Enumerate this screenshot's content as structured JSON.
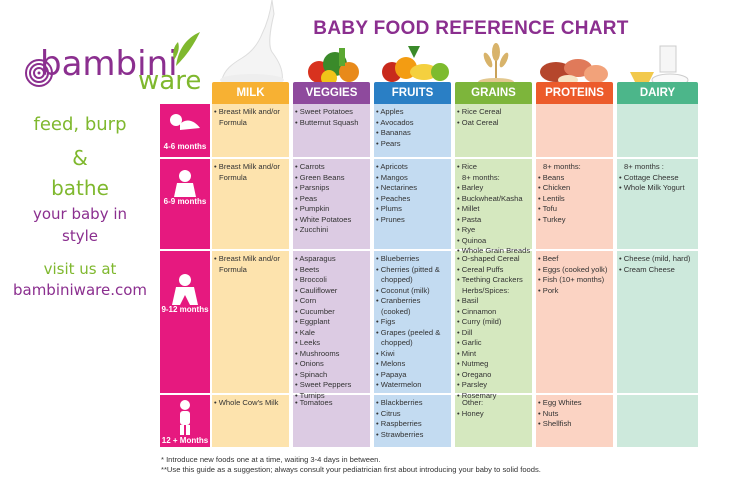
{
  "brand": {
    "logo_part1": "bambini",
    "logo_part2": "ware",
    "tagline1": "feed, burp",
    "tagline_amp": "&",
    "tagline2": "bathe",
    "tagline3": "your baby in",
    "tagline4": "style",
    "visit": "visit us at",
    "website": "bambiniware.com"
  },
  "title": "BABY FOOD REFERENCE CHART",
  "colors": {
    "milk": "#f7b133",
    "veggies": "#8e4a9d",
    "fruits": "#2a7fc5",
    "grains": "#7db53b",
    "proteins": "#ec5b2b",
    "dairy": "#4cb68a",
    "age": "#e6197f"
  },
  "columns": [
    {
      "key": "milk",
      "label": "MILK"
    },
    {
      "key": "veggies",
      "label": "VEGGIES"
    },
    {
      "key": "fruits",
      "label": "FRUITS"
    },
    {
      "key": "grains",
      "label": "GRAINS"
    },
    {
      "key": "proteins",
      "label": "PROTEINS"
    },
    {
      "key": "dairy",
      "label": "DAIRY"
    }
  ],
  "rows": [
    {
      "age": "4-6 months",
      "milk": [
        "• Breast Milk and/or",
        "Formula"
      ],
      "veggies": [
        "• Sweet Potatoes",
        "• Butternut Squash"
      ],
      "fruits": [
        "• Apples",
        "• Avocados",
        "• Bananas",
        "• Pears"
      ],
      "grains": [
        "• Rice Cereal",
        "• Oat Cereal"
      ],
      "proteins": [],
      "dairy": []
    },
    {
      "age": "6-9 months",
      "milk": [
        "• Breast Milk and/or",
        "Formula"
      ],
      "veggies": [
        "• Carrots",
        "• Green Beans",
        "• Parsnips",
        "• Peas",
        "• Pumpkin",
        "• White Potatoes",
        "• Zucchini"
      ],
      "fruits": [
        "• Apricots",
        "• Mangos",
        "• Nectarines",
        "• Peaches",
        "• Plums",
        "• Prunes"
      ],
      "grains": [
        "• Rice",
        "8+ months:",
        "• Barley",
        "• Buckwheat/Kasha",
        "• Millet",
        "• Pasta",
        "• Rye",
        "• Quinoa",
        "• Whole Grain Breads"
      ],
      "proteins": [
        "8+ months:",
        "• Beans",
        "• Chicken",
        "• Lentils",
        "• Tofu",
        "• Turkey"
      ],
      "dairy": [
        "8+ months :",
        "• Cottage Cheese",
        "• Whole Milk Yogurt"
      ]
    },
    {
      "age": "9-12 months",
      "milk": [
        "• Breast Milk and/or",
        "Formula"
      ],
      "veggies": [
        "• Asparagus",
        "• Beets",
        "• Broccoli",
        "• Cauliflower",
        "• Corn",
        "• Cucumber",
        "• Eggplant",
        "• Kale",
        "• Leeks",
        "• Mushrooms",
        "• Onions",
        "• Spinach",
        "• Sweet Peppers",
        "• Turnips"
      ],
      "fruits": [
        "• Blueberries",
        "• Cherries (pitted &",
        "chopped)",
        "• Coconut (milk)",
        "• Cranberries",
        "(cooked)",
        "• Figs",
        "• Grapes (peeled &",
        "chopped)",
        "• Kiwi",
        "• Melons",
        "• Papaya",
        "• Watermelon"
      ],
      "grains": [
        "• O-shaped Cereal",
        "• Cereal Puffs",
        "• Teething Crackers",
        "Herbs/Spices:",
        "• Basil",
        "• Cinnamon",
        "• Curry (mild)",
        "• Dill",
        "• Garlic",
        "• Mint",
        "• Nutmeg",
        "• Oregano",
        "• Parsley",
        "• Rosemary"
      ],
      "proteins": [
        "• Beef",
        "• Eggs (cooked yolk)",
        "• Fish (10+ months)",
        "• Pork"
      ],
      "dairy": [
        "• Cheese (mild, hard)",
        "• Cream Cheese"
      ]
    },
    {
      "age": "12 + Months",
      "milk": [
        "• Whole Cow's Milk"
      ],
      "veggies": [
        "• Tomatoes"
      ],
      "fruits": [
        "• Blackberries",
        "• Citrus",
        "• Raspberries",
        "• Strawberries"
      ],
      "grains": [
        "Other:",
        "• Honey"
      ],
      "proteins": [
        "• Egg Whites",
        "• Nuts",
        "• Shellfish"
      ],
      "dairy": []
    }
  ],
  "footnotes": [
    "* Introduce new foods one at a time, waiting 3-4 days in between.",
    "**Use this guide as a suggestion; always consult your pediatrician first about introducing your baby to solid foods."
  ]
}
